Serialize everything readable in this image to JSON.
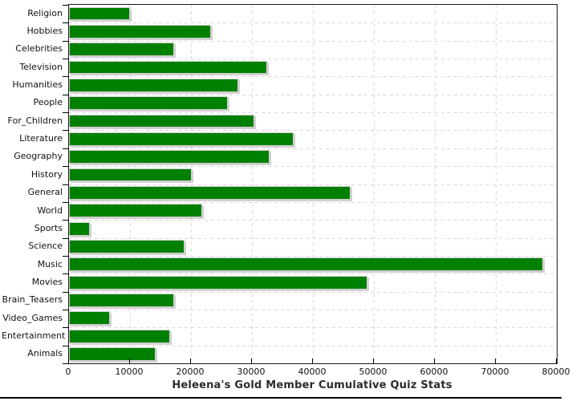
{
  "chart_data": {
    "type": "bar",
    "orientation": "horizontal",
    "title": "Heleena's Gold Member Cumulative Quiz Stats",
    "categories": [
      "Religion",
      "Hobbies",
      "Celebrities",
      "Television",
      "Humanities",
      "People",
      "For_Children",
      "Literature",
      "Geography",
      "History",
      "General",
      "World",
      "Sports",
      "Science",
      "Music",
      "Movies",
      "Brain_Teasers",
      "Video_Games",
      "Entertainment",
      "Animals"
    ],
    "values": [
      10000,
      23300,
      17200,
      32500,
      27700,
      26000,
      30400,
      36800,
      32900,
      20100,
      46200,
      21900,
      3400,
      18900,
      77700,
      49000,
      17300,
      6700,
      16600,
      14200
    ],
    "xlim": [
      0,
      80000
    ],
    "x_ticks": [
      0,
      10000,
      20000,
      30000,
      40000,
      50000,
      60000,
      70000,
      80000
    ],
    "xlabel": "",
    "ylabel": "",
    "grid": "dashed",
    "legend": "none",
    "colors": {
      "bar": "#008000",
      "bar_shadow": "#c0c0c0",
      "gridline": "#d9d9d9",
      "axis": "#1a1a1a",
      "text": "#111111",
      "title_text": "#2b2b2b"
    }
  }
}
